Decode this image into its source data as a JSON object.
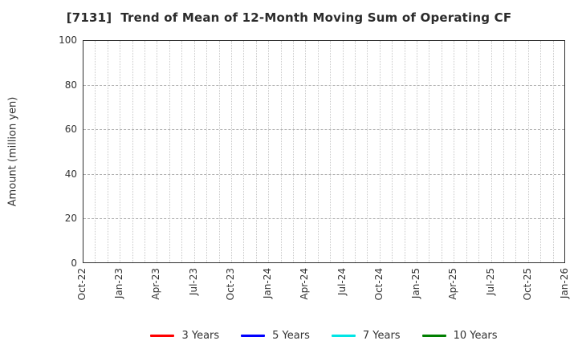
{
  "chart_data": {
    "type": "line",
    "title": "[7131]  Trend of Mean of 12-Month Moving Sum of Operating CF",
    "xlabel": "",
    "ylabel": "Amount (million yen)",
    "ylim": [
      0,
      100
    ],
    "yticks": [
      0,
      20,
      40,
      60,
      80,
      100
    ],
    "x_tick_labels": [
      "Oct-22",
      "Jan-23",
      "Apr-23",
      "Jul-23",
      "Oct-23",
      "Jan-24",
      "Apr-24",
      "Jul-24",
      "Oct-24",
      "Jan-25",
      "Apr-25",
      "Jul-25",
      "Oct-25",
      "Jan-26"
    ],
    "months_per_labeled_tick": 3,
    "total_month_intervals": 39,
    "grid": true,
    "legend_position": "bottom",
    "series": [
      {
        "name": "3 Years",
        "color": "#ff0000",
        "values": []
      },
      {
        "name": "5 Years",
        "color": "#0000ff",
        "values": []
      },
      {
        "name": "7 Years",
        "color": "#00e5e5",
        "values": []
      },
      {
        "name": "10 Years",
        "color": "#007f00",
        "values": []
      }
    ]
  },
  "colors": {
    "title_text": "#2b2b2b",
    "tick_text": "#333333",
    "plot_border": "#303030",
    "grid_horizontal": "#b0b0b0",
    "grid_vertical": "#c9c9c9",
    "background": "#ffffff"
  }
}
